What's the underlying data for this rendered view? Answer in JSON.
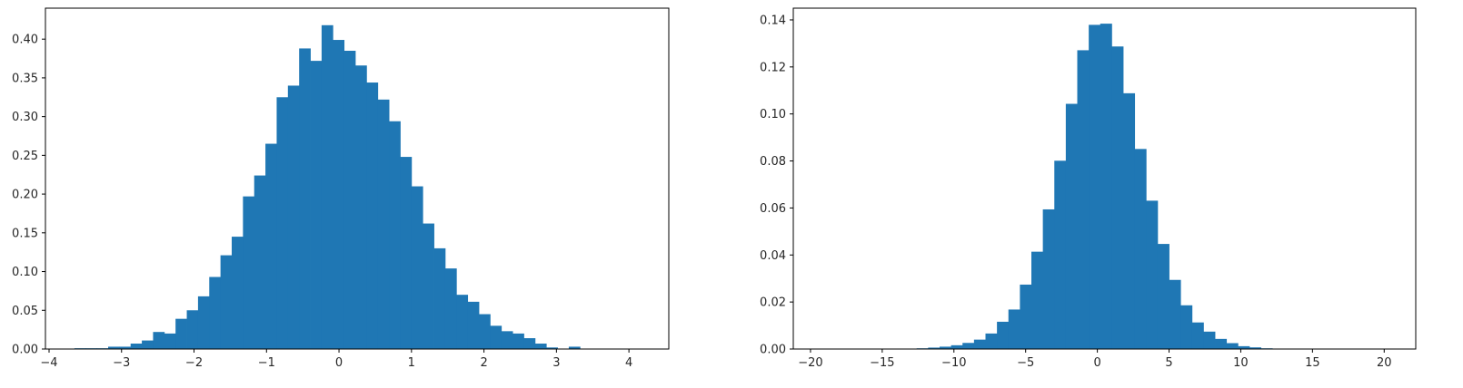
{
  "figure": {
    "background": "#ffffff"
  },
  "chart_data": [
    {
      "type": "bar",
      "subtype": "histogram",
      "title": "",
      "xlabel": "",
      "ylabel": "",
      "color": "#1f77b4",
      "xlim": [
        -4.05,
        4.55
      ],
      "ylim": [
        0,
        0.44
      ],
      "xticks": [
        -4,
        -3,
        -2,
        -1,
        0,
        1,
        2,
        3,
        4
      ],
      "xtick_labels": [
        "−4",
        "−3",
        "−2",
        "−1",
        "0",
        "1",
        "2",
        "3",
        "4"
      ],
      "yticks": [
        0,
        0.05,
        0.1,
        0.15,
        0.2,
        0.25,
        0.3,
        0.35,
        0.4
      ],
      "ytick_labels": [
        "0.00",
        "0.05",
        "0.10",
        "0.15",
        "0.20",
        "0.25",
        "0.30",
        "0.35",
        "0.40"
      ],
      "bin_edges": [
        -3.65,
        -3.495,
        -3.34,
        -3.185,
        -3.03,
        -2.875,
        -2.72,
        -2.565,
        -2.41,
        -2.255,
        -2.1,
        -1.945,
        -1.79,
        -1.635,
        -1.48,
        -1.325,
        -1.17,
        -1.015,
        -0.86,
        -0.705,
        -0.55,
        -0.395,
        -0.24,
        -0.085,
        0.07,
        0.225,
        0.38,
        0.535,
        0.69,
        0.845,
        1.0,
        1.155,
        1.31,
        1.465,
        1.62,
        1.775,
        1.93,
        2.085,
        2.24,
        2.395,
        2.55,
        2.705,
        2.86,
        3.015,
        3.17,
        3.325,
        3.48
      ],
      "values": [
        0.001,
        0.001,
        0.001,
        0.003,
        0.003,
        0.007,
        0.011,
        0.022,
        0.02,
        0.039,
        0.05,
        0.068,
        0.093,
        0.121,
        0.145,
        0.197,
        0.224,
        0.265,
        0.325,
        0.34,
        0.388,
        0.372,
        0.418,
        0.399,
        0.385,
        0.366,
        0.344,
        0.322,
        0.294,
        0.248,
        0.21,
        0.162,
        0.13,
        0.104,
        0.07,
        0.061,
        0.045,
        0.03,
        0.023,
        0.02,
        0.014,
        0.007,
        0.002,
        0.0,
        0.003,
        0.0
      ]
    },
    {
      "type": "bar",
      "subtype": "histogram",
      "title": "",
      "xlabel": "",
      "ylabel": "",
      "color": "#1f77b4",
      "xlim": [
        -21.2,
        22.2
      ],
      "ylim": [
        0,
        0.145
      ],
      "xticks": [
        -20,
        -15,
        -10,
        -5,
        0,
        5,
        10,
        15,
        20
      ],
      "xtick_labels": [
        "−20",
        "−15",
        "−10",
        "−5",
        "0",
        "5",
        "10",
        "15",
        "20"
      ],
      "yticks": [
        0,
        0.02,
        0.04,
        0.06,
        0.08,
        0.1,
        0.12,
        0.14
      ],
      "ytick_labels": [
        "0.00",
        "0.02",
        "0.04",
        "0.06",
        "0.08",
        "0.10",
        "0.12",
        "0.14"
      ],
      "bin_edges": [
        -19.0,
        -18.2,
        -17.4,
        -16.6,
        -15.8,
        -15.0,
        -14.2,
        -13.4,
        -12.6,
        -11.8,
        -11.0,
        -10.2,
        -9.4,
        -8.6,
        -7.8,
        -7.0,
        -6.2,
        -5.4,
        -4.6,
        -3.8,
        -3.0,
        -2.2,
        -1.4,
        -0.6,
        0.2,
        1.0,
        1.8,
        2.6,
        3.4,
        4.2,
        5.0,
        5.8,
        6.6,
        7.4,
        8.2,
        9.0,
        9.8,
        10.6,
        11.4,
        12.2,
        13.0,
        13.8,
        14.6,
        15.4,
        16.2,
        17.0,
        17.8,
        18.6,
        19.4,
        20.2,
        21.0
      ],
      "values": [
        0.0,
        0.0,
        0.0,
        0.0,
        0.0,
        0.0,
        0.0,
        0.0,
        0.0003,
        0.0006,
        0.001,
        0.0016,
        0.0026,
        0.004,
        0.0066,
        0.0116,
        0.0168,
        0.0274,
        0.0414,
        0.0594,
        0.0801,
        0.1043,
        0.1271,
        0.1379,
        0.1384,
        0.1287,
        0.1088,
        0.0851,
        0.0631,
        0.0447,
        0.0294,
        0.0186,
        0.0113,
        0.0074,
        0.0043,
        0.0025,
        0.0012,
        0.0007,
        0.0003,
        0.0,
        0.0,
        0.0,
        0.0,
        0.0,
        0.0,
        0.0,
        0.0,
        0.0,
        0.0,
        0.0
      ]
    }
  ]
}
